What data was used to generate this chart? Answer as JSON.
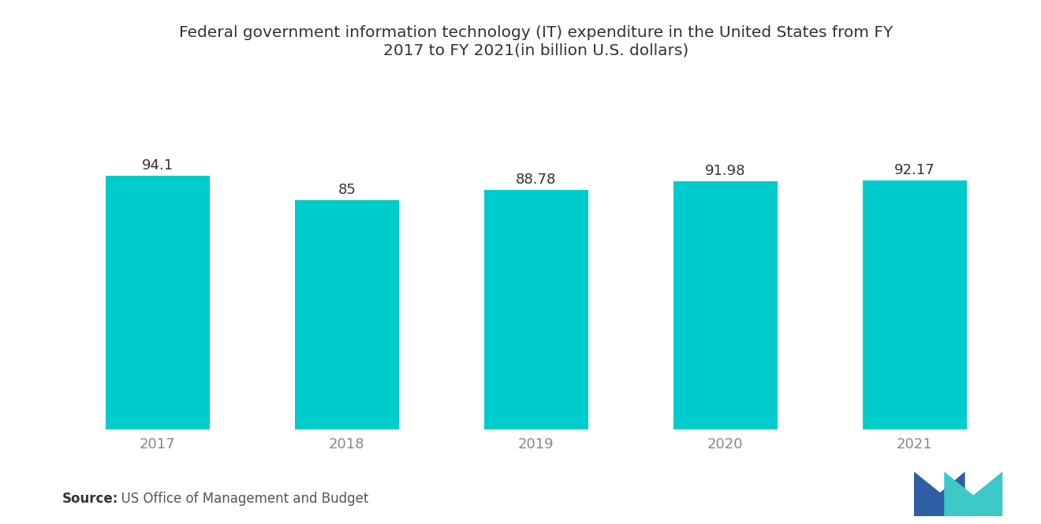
{
  "categories": [
    "2017",
    "2018",
    "2019",
    "2020",
    "2021"
  ],
  "values": [
    94.1,
    85,
    88.78,
    91.98,
    92.17
  ],
  "value_labels": [
    "94.1",
    "85",
    "88.78",
    "91.98",
    "92.17"
  ],
  "bar_color": "#00CCCC",
  "title_line1": "Federal government information technology (IT) expenditure in the United States from FY",
  "title_line2": "2017 to FY 2021(in billion U.S. dollars)",
  "title_fontsize": 14.5,
  "title_color": "#333333",
  "tick_fontsize": 13,
  "tick_color": "#888888",
  "value_label_fontsize": 13,
  "value_label_color": "#333333",
  "source_bold": "Source:",
  "source_text": "  US Office of Management and Budget",
  "source_fontsize": 12,
  "ylim": [
    0,
    130
  ],
  "background_color": "#ffffff",
  "bar_width": 0.55,
  "blue_color": "#2E5FA3",
  "teal_color": "#3DC8C8"
}
